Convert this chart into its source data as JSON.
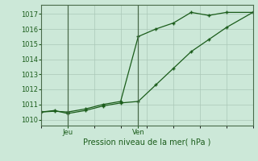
{
  "bg_color": "#cce8d8",
  "plot_bg_color": "#cce8d8",
  "grid_color": "#aac8b8",
  "line_color": "#1a5c1a",
  "marker_color": "#1a5c1a",
  "title": "Pression niveau de la mer( hPa )",
  "ylabel_ticks": [
    1010,
    1011,
    1012,
    1013,
    1014,
    1015,
    1016,
    1017
  ],
  "ylim": [
    1009.6,
    1017.6
  ],
  "xlim": [
    0,
    24
  ],
  "vline_positions": [
    3,
    11
  ],
  "xtick_positions": [
    3,
    11
  ],
  "xtick_labels": [
    "Jeu",
    "Ven"
  ],
  "series1_x": [
    0,
    1.5,
    3,
    5,
    7,
    9,
    11,
    13,
    15,
    17,
    19,
    21,
    24
  ],
  "series1_y": [
    1010.5,
    1010.55,
    1010.5,
    1010.7,
    1011.0,
    1011.2,
    1015.5,
    1016.0,
    1016.4,
    1017.1,
    1016.9,
    1017.1,
    1017.1
  ],
  "series2_x": [
    0,
    1.5,
    3,
    5,
    7,
    9,
    11,
    13,
    15,
    17,
    19,
    21,
    24
  ],
  "series2_y": [
    1010.5,
    1010.6,
    1010.4,
    1010.6,
    1010.9,
    1011.1,
    1011.2,
    1012.3,
    1013.4,
    1014.5,
    1015.3,
    1016.1,
    1017.1
  ],
  "figsize": [
    3.2,
    2.0
  ],
  "dpi": 100,
  "title_fontsize": 7,
  "tick_fontsize": 6
}
